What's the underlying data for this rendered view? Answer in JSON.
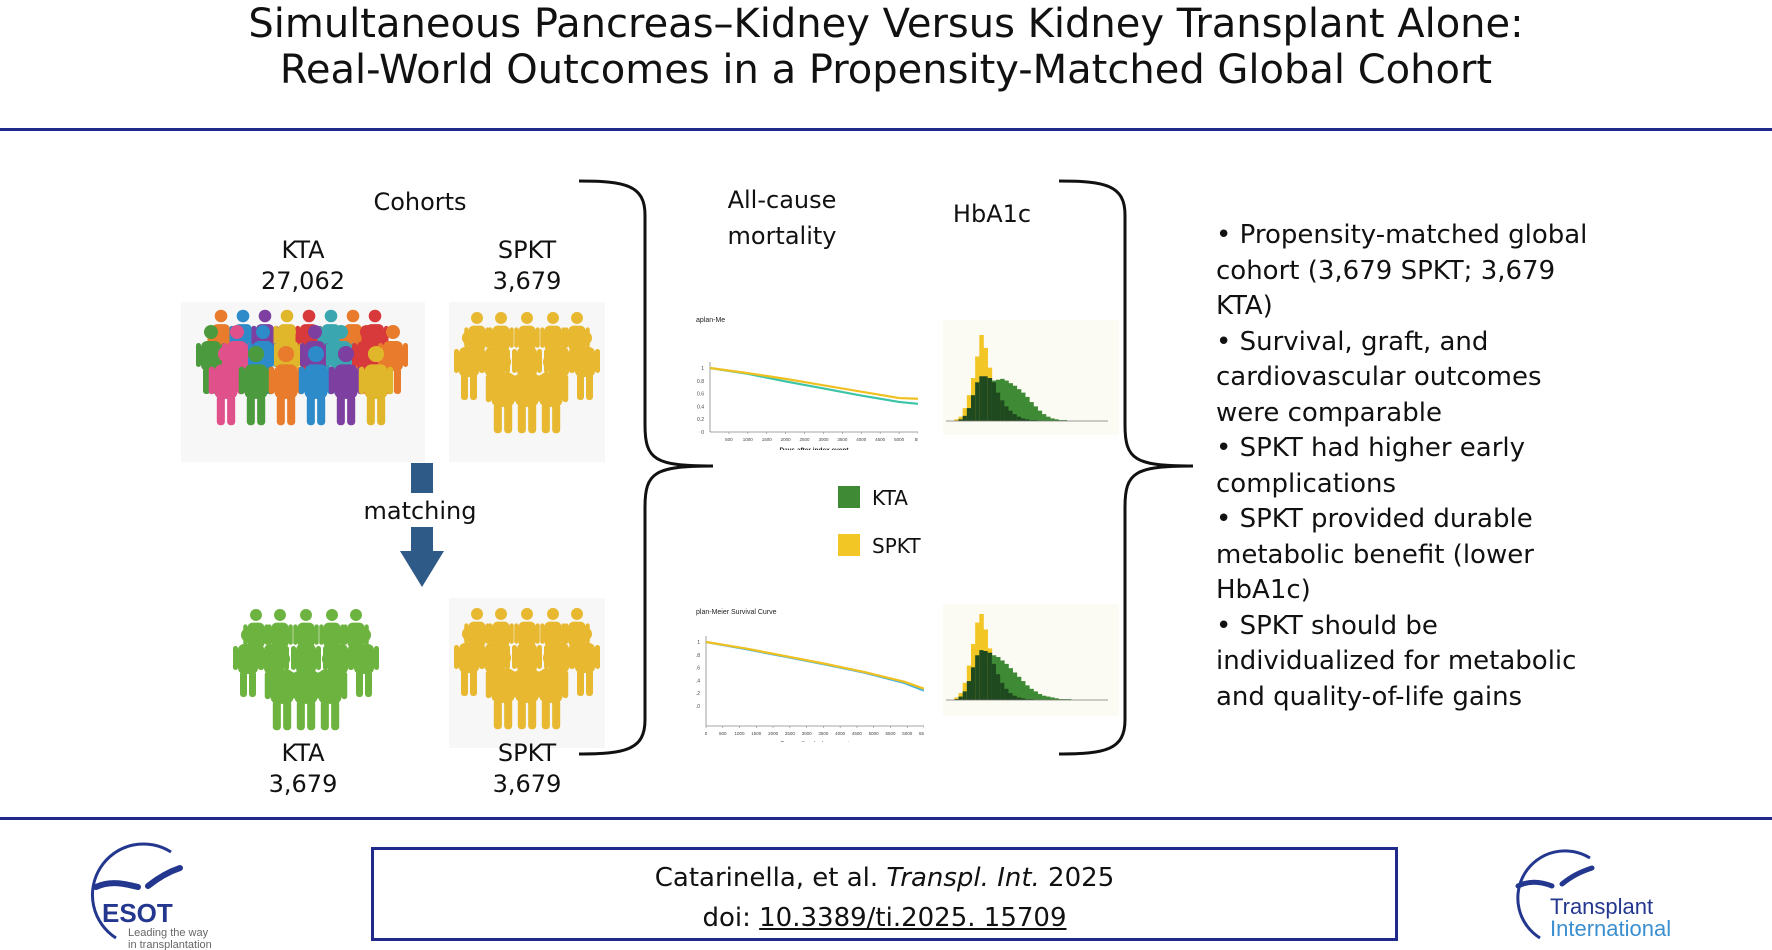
{
  "title": {
    "line1": "Simultaneous Pancreas–Kidney Versus Kidney Transplant Alone:",
    "line2": "Real-World Outcomes in a Propensity-Matched Global Cohort"
  },
  "colors": {
    "rule": "#1f2a8a",
    "kta": "#3f8a35",
    "spkt": "#f2c624",
    "overlap": "#1f4a1f",
    "arrow": "#2e5a87",
    "km_kta_1": "#3cc4a8",
    "km_kta_2": "#48b4dc",
    "km_spkt": "#f0c020"
  },
  "cohorts": {
    "heading": "Cohorts",
    "before": {
      "kta": {
        "label": "KTA",
        "count": "27,062"
      },
      "spkt": {
        "label": "SPKT",
        "count": "3,679"
      }
    },
    "matching_label": "matching",
    "after": {
      "kta": {
        "label": "KTA",
        "count": "3,679"
      },
      "spkt": {
        "label": "SPKT",
        "count": "3,679"
      }
    },
    "crowd_colors_mixed": [
      "#e87b2c",
      "#2c8bc8",
      "#7d3fa0",
      "#e0b62a",
      "#d8393a",
      "#3aa6b0",
      "#e87b2c",
      "#d8393a",
      "#4c9a3e",
      "#e0508a",
      "#2c8bc8",
      "#e0b62a",
      "#7d3fa0",
      "#3aa6b0",
      "#d8393a",
      "#e87b2c",
      "#e0508a",
      "#4c9a3e"
    ],
    "crowd_color_spkt": "#e8b830",
    "crowd_color_kta_matched": "#6db33f"
  },
  "outcomes": {
    "mortality_heading": "All-cause mortality",
    "hba1c_heading": "HbA1c",
    "legend": [
      {
        "label": "KTA",
        "color": "#3f8a35"
      },
      {
        "label": "SPKT",
        "color": "#f2c624"
      }
    ]
  },
  "chart_data": [
    {
      "type": "line",
      "title": "aplan-Me",
      "xlabel": "Days after index event",
      "x_ticks": [
        "500",
        "1000",
        "1500",
        "2000",
        "2500",
        "3000",
        "3500",
        "4000",
        "4500",
        "5000",
        "55("
      ],
      "y_ticks": [
        "0",
        "0.2",
        "0.4",
        "0.6",
        "0.8",
        "1"
      ],
      "xlim": [
        0,
        5500
      ],
      "ylim": [
        0,
        1
      ],
      "x": [
        0,
        1000,
        2000,
        3000,
        4000,
        5000,
        5500
      ],
      "series": [
        {
          "values": [
            1.0,
            0.92,
            0.83,
            0.73,
            0.63,
            0.53,
            0.52
          ],
          "color": "#f0c020"
        },
        {
          "values": [
            1.0,
            0.91,
            0.79,
            0.68,
            0.57,
            0.47,
            0.44
          ],
          "color": "#3cc4a8"
        }
      ]
    },
    {
      "type": "bar",
      "series": [
        {
          "values": [
            0,
            0,
            0.02,
            0.05,
            0.15,
            0.3,
            0.5,
            0.75,
            1.0,
            0.85,
            0.62,
            0.45,
            0.33,
            0.24,
            0.17,
            0.12,
            0.08,
            0.05,
            0.03,
            0.02,
            0.01,
            0.01,
            0,
            0,
            0,
            0,
            0,
            0,
            0,
            0,
            0,
            0,
            0,
            0,
            0,
            0
          ],
          "color": "#f2c624"
        },
        {
          "values": [
            0,
            0,
            0,
            0.02,
            0.06,
            0.15,
            0.3,
            0.45,
            0.52,
            0.52,
            0.5,
            0.47,
            0.48,
            0.49,
            0.47,
            0.44,
            0.41,
            0.37,
            0.33,
            0.28,
            0.22,
            0.17,
            0.12,
            0.08,
            0.05,
            0.03,
            0.02,
            0.01,
            0.01,
            0,
            0,
            0,
            0,
            0,
            0,
            0
          ],
          "color": "#3f8a35"
        }
      ]
    },
    {
      "type": "line",
      "title": "plan-Meier Survival Curve",
      "xlabel": "Days after index event",
      "x_ticks": [
        "0",
        "500",
        "1000",
        "1500",
        "2000",
        "2500",
        "3000",
        "3500",
        "4000",
        "4500",
        "5000",
        "5500",
        "5000",
        "5500"
      ],
      "y_ticks": [
        "0.0",
        "0.2",
        "0.4",
        "0.6",
        "0.8",
        "1"
      ],
      "xlim": [
        0,
        5500
      ],
      "ylim": [
        0,
        1
      ],
      "x": [
        0,
        1000,
        2000,
        3000,
        4000,
        5000,
        5500
      ],
      "series": [
        {
          "values": [
            1.0,
            0.9,
            0.78,
            0.66,
            0.53,
            0.38,
            0.27
          ],
          "color": "#f0c020"
        },
        {
          "values": [
            1.0,
            0.89,
            0.77,
            0.65,
            0.52,
            0.36,
            0.24
          ],
          "color": "#48b4dc"
        }
      ]
    },
    {
      "type": "bar",
      "series": [
        {
          "values": [
            0,
            0,
            0.03,
            0.08,
            0.2,
            0.4,
            0.65,
            0.9,
            1.0,
            0.82,
            0.6,
            0.42,
            0.3,
            0.2,
            0.13,
            0.08,
            0.05,
            0.03,
            0.02,
            0.01,
            0.01,
            0,
            0,
            0,
            0,
            0,
            0,
            0,
            0,
            0,
            0,
            0,
            0,
            0,
            0,
            0
          ],
          "color": "#f2c624"
        },
        {
          "values": [
            0,
            0,
            0.01,
            0.04,
            0.1,
            0.22,
            0.38,
            0.52,
            0.58,
            0.57,
            0.55,
            0.52,
            0.5,
            0.46,
            0.42,
            0.37,
            0.32,
            0.27,
            0.22,
            0.17,
            0.13,
            0.1,
            0.07,
            0.05,
            0.04,
            0.03,
            0.02,
            0.01,
            0.01,
            0.01,
            0,
            0,
            0,
            0,
            0,
            0
          ],
          "color": "#3f8a35"
        }
      ]
    }
  ],
  "summary": {
    "bullets": [
      "• Propensity-matched global cohort (3,679 SPKT; 3,679 KTA)",
      "• Survival, graft, and cardiovascular outcomes were comparable",
      "• SPKT had higher early complications",
      "• SPKT provided durable metabolic benefit (lower HbA1c)",
      "• SPKT should be individualized for metabolic and quality-of-life gains"
    ]
  },
  "citation": {
    "authors": "Catarinella, et al. ",
    "journal": "Transpl. Int.",
    "year": " 2025",
    "doi_prefix": "doi: ",
    "doi": "10.3389/ti.2025. 15709"
  },
  "logos": {
    "esot": {
      "name": "ESOT",
      "tagline1": "Leading the way",
      "tagline2": "in transplantation"
    },
    "ti": {
      "line1": "Transplant",
      "line2": "International"
    }
  }
}
